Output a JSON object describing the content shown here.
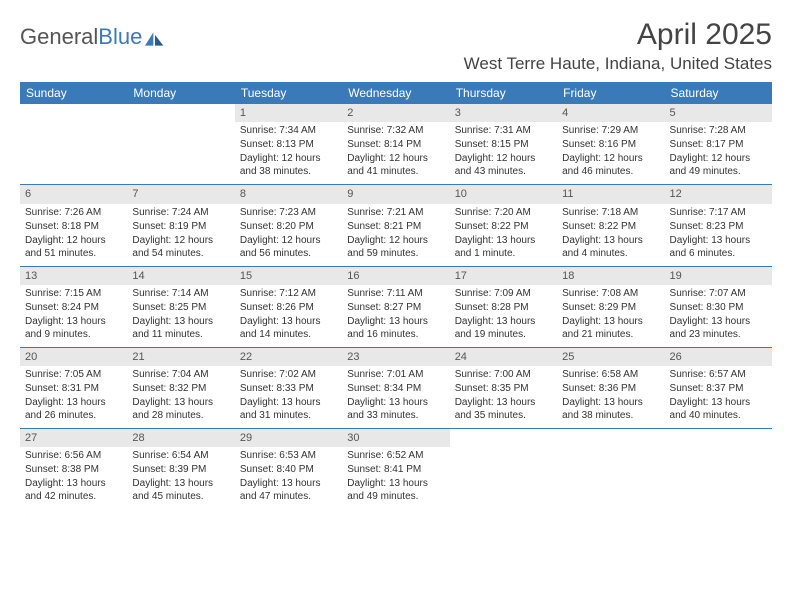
{
  "logo": {
    "part1": "General",
    "part2": "Blue"
  },
  "title": "April 2025",
  "subtitle": "West Terre Haute, Indiana, United States",
  "colors": {
    "header_bg": "#3a7ab8",
    "daynum_bg": "#e8e8e8",
    "border": "#3a7ab8",
    "text": "#333333",
    "background": "#ffffff"
  },
  "day_names": [
    "Sunday",
    "Monday",
    "Tuesday",
    "Wednesday",
    "Thursday",
    "Friday",
    "Saturday"
  ],
  "weeks": [
    [
      null,
      null,
      {
        "n": "1",
        "sr": "Sunrise: 7:34 AM",
        "ss": "Sunset: 8:13 PM",
        "dl": "Daylight: 12 hours and 38 minutes."
      },
      {
        "n": "2",
        "sr": "Sunrise: 7:32 AM",
        "ss": "Sunset: 8:14 PM",
        "dl": "Daylight: 12 hours and 41 minutes."
      },
      {
        "n": "3",
        "sr": "Sunrise: 7:31 AM",
        "ss": "Sunset: 8:15 PM",
        "dl": "Daylight: 12 hours and 43 minutes."
      },
      {
        "n": "4",
        "sr": "Sunrise: 7:29 AM",
        "ss": "Sunset: 8:16 PM",
        "dl": "Daylight: 12 hours and 46 minutes."
      },
      {
        "n": "5",
        "sr": "Sunrise: 7:28 AM",
        "ss": "Sunset: 8:17 PM",
        "dl": "Daylight: 12 hours and 49 minutes."
      }
    ],
    [
      {
        "n": "6",
        "sr": "Sunrise: 7:26 AM",
        "ss": "Sunset: 8:18 PM",
        "dl": "Daylight: 12 hours and 51 minutes."
      },
      {
        "n": "7",
        "sr": "Sunrise: 7:24 AM",
        "ss": "Sunset: 8:19 PM",
        "dl": "Daylight: 12 hours and 54 minutes."
      },
      {
        "n": "8",
        "sr": "Sunrise: 7:23 AM",
        "ss": "Sunset: 8:20 PM",
        "dl": "Daylight: 12 hours and 56 minutes."
      },
      {
        "n": "9",
        "sr": "Sunrise: 7:21 AM",
        "ss": "Sunset: 8:21 PM",
        "dl": "Daylight: 12 hours and 59 minutes."
      },
      {
        "n": "10",
        "sr": "Sunrise: 7:20 AM",
        "ss": "Sunset: 8:22 PM",
        "dl": "Daylight: 13 hours and 1 minute."
      },
      {
        "n": "11",
        "sr": "Sunrise: 7:18 AM",
        "ss": "Sunset: 8:22 PM",
        "dl": "Daylight: 13 hours and 4 minutes."
      },
      {
        "n": "12",
        "sr": "Sunrise: 7:17 AM",
        "ss": "Sunset: 8:23 PM",
        "dl": "Daylight: 13 hours and 6 minutes."
      }
    ],
    [
      {
        "n": "13",
        "sr": "Sunrise: 7:15 AM",
        "ss": "Sunset: 8:24 PM",
        "dl": "Daylight: 13 hours and 9 minutes."
      },
      {
        "n": "14",
        "sr": "Sunrise: 7:14 AM",
        "ss": "Sunset: 8:25 PM",
        "dl": "Daylight: 13 hours and 11 minutes."
      },
      {
        "n": "15",
        "sr": "Sunrise: 7:12 AM",
        "ss": "Sunset: 8:26 PM",
        "dl": "Daylight: 13 hours and 14 minutes."
      },
      {
        "n": "16",
        "sr": "Sunrise: 7:11 AM",
        "ss": "Sunset: 8:27 PM",
        "dl": "Daylight: 13 hours and 16 minutes."
      },
      {
        "n": "17",
        "sr": "Sunrise: 7:09 AM",
        "ss": "Sunset: 8:28 PM",
        "dl": "Daylight: 13 hours and 19 minutes."
      },
      {
        "n": "18",
        "sr": "Sunrise: 7:08 AM",
        "ss": "Sunset: 8:29 PM",
        "dl": "Daylight: 13 hours and 21 minutes."
      },
      {
        "n": "19",
        "sr": "Sunrise: 7:07 AM",
        "ss": "Sunset: 8:30 PM",
        "dl": "Daylight: 13 hours and 23 minutes."
      }
    ],
    [
      {
        "n": "20",
        "sr": "Sunrise: 7:05 AM",
        "ss": "Sunset: 8:31 PM",
        "dl": "Daylight: 13 hours and 26 minutes."
      },
      {
        "n": "21",
        "sr": "Sunrise: 7:04 AM",
        "ss": "Sunset: 8:32 PM",
        "dl": "Daylight: 13 hours and 28 minutes."
      },
      {
        "n": "22",
        "sr": "Sunrise: 7:02 AM",
        "ss": "Sunset: 8:33 PM",
        "dl": "Daylight: 13 hours and 31 minutes."
      },
      {
        "n": "23",
        "sr": "Sunrise: 7:01 AM",
        "ss": "Sunset: 8:34 PM",
        "dl": "Daylight: 13 hours and 33 minutes."
      },
      {
        "n": "24",
        "sr": "Sunrise: 7:00 AM",
        "ss": "Sunset: 8:35 PM",
        "dl": "Daylight: 13 hours and 35 minutes."
      },
      {
        "n": "25",
        "sr": "Sunrise: 6:58 AM",
        "ss": "Sunset: 8:36 PM",
        "dl": "Daylight: 13 hours and 38 minutes."
      },
      {
        "n": "26",
        "sr": "Sunrise: 6:57 AM",
        "ss": "Sunset: 8:37 PM",
        "dl": "Daylight: 13 hours and 40 minutes."
      }
    ],
    [
      {
        "n": "27",
        "sr": "Sunrise: 6:56 AM",
        "ss": "Sunset: 8:38 PM",
        "dl": "Daylight: 13 hours and 42 minutes."
      },
      {
        "n": "28",
        "sr": "Sunrise: 6:54 AM",
        "ss": "Sunset: 8:39 PM",
        "dl": "Daylight: 13 hours and 45 minutes."
      },
      {
        "n": "29",
        "sr": "Sunrise: 6:53 AM",
        "ss": "Sunset: 8:40 PM",
        "dl": "Daylight: 13 hours and 47 minutes."
      },
      {
        "n": "30",
        "sr": "Sunrise: 6:52 AM",
        "ss": "Sunset: 8:41 PM",
        "dl": "Daylight: 13 hours and 49 minutes."
      },
      null,
      null,
      null
    ]
  ]
}
